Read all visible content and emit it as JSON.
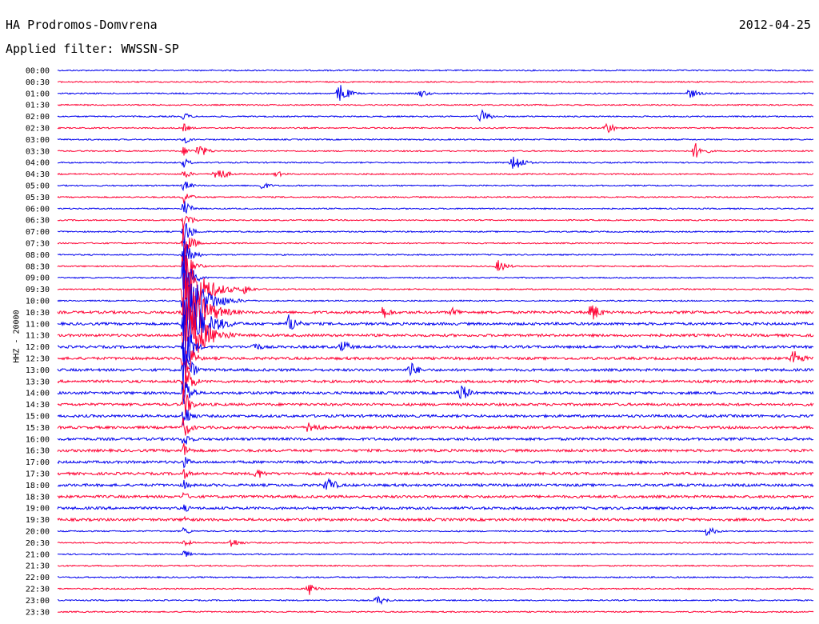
{
  "header": {
    "station": "HA Prodromos-Domvrena",
    "filter": "Applied filter: WWSSN-SP",
    "date": "2012-04-25",
    "channel_label": "HHZ - 20000"
  },
  "colors": {
    "even_trace": "#0000ee",
    "odd_trace": "#ff0033"
  },
  "chart_data": {
    "type": "line",
    "title": "HA Prodromos-Domvrena",
    "subtitle": "Applied filter: WWSSN-SP",
    "date": "2012-04-25",
    "ylabel": "HHZ - 20000",
    "xlabel": "",
    "trace_duration_minutes": 30,
    "row_labels": [
      "00:00",
      "00:30",
      "01:00",
      "01:30",
      "02:00",
      "02:30",
      "03:00",
      "03:30",
      "04:00",
      "04:30",
      "05:00",
      "05:30",
      "06:00",
      "06:30",
      "07:00",
      "07:30",
      "08:00",
      "08:30",
      "09:00",
      "09:30",
      "10:00",
      "10:30",
      "11:00",
      "11:30",
      "12:00",
      "12:30",
      "13:00",
      "13:30",
      "14:00",
      "14:30",
      "15:00",
      "15:30",
      "16:00",
      "16:30",
      "17:00",
      "17:30",
      "18:00",
      "18:30",
      "19:00",
      "19:30",
      "20:00",
      "20:30",
      "21:00",
      "21:30",
      "22:00",
      "22:30",
      "23:00",
      "23:30"
    ],
    "series": [
      {
        "colour": "blue",
        "rows": "even (00:00, 01:00, ...)"
      },
      {
        "colour": "red",
        "rows": "odd (00:30, 01:30, ...)"
      }
    ],
    "events": [
      {
        "row": 2,
        "minute": 11.2,
        "amp": 1.0
      },
      {
        "row": 2,
        "minute": 14.4,
        "amp": 0.4
      },
      {
        "row": 2,
        "minute": 25.1,
        "amp": 0.5
      },
      {
        "row": 4,
        "minute": 16.8,
        "amp": 0.7
      },
      {
        "row": 5,
        "minute": 21.8,
        "amp": 0.6
      },
      {
        "row": 7,
        "minute": 5.6,
        "amp": 0.7
      },
      {
        "row": 7,
        "minute": 25.3,
        "amp": 0.8
      },
      {
        "row": 8,
        "minute": 18.1,
        "amp": 1.0
      },
      {
        "row": 9,
        "minute": 6.3,
        "amp": 0.9
      },
      {
        "row": 9,
        "minute": 8.7,
        "amp": 0.3
      },
      {
        "row": 10,
        "minute": 8.1,
        "amp": 0.4
      },
      {
        "row": 17,
        "minute": 17.5,
        "amp": 0.6
      },
      {
        "row": 19,
        "minute": 7.4,
        "amp": 0.5
      },
      {
        "row": 21,
        "minute": 12.9,
        "amp": 0.7
      },
      {
        "row": 21,
        "minute": 15.7,
        "amp": 0.5
      },
      {
        "row": 21,
        "minute": 21.2,
        "amp": 1.0
      },
      {
        "row": 22,
        "minute": 9.2,
        "amp": 1.0
      },
      {
        "row": 24,
        "minute": 7.8,
        "amp": 0.5
      },
      {
        "row": 24,
        "minute": 11.3,
        "amp": 0.7
      },
      {
        "row": 25,
        "minute": 29.2,
        "amp": 1.0
      },
      {
        "row": 26,
        "minute": 14.0,
        "amp": 0.8
      },
      {
        "row": 28,
        "minute": 16.0,
        "amp": 1.0
      },
      {
        "row": 31,
        "minute": 10.0,
        "amp": 0.8
      },
      {
        "row": 35,
        "minute": 7.9,
        "amp": 0.6
      },
      {
        "row": 36,
        "minute": 10.7,
        "amp": 0.9
      },
      {
        "row": 40,
        "minute": 25.8,
        "amp": 0.5
      },
      {
        "row": 41,
        "minute": 6.9,
        "amp": 0.5
      },
      {
        "row": 45,
        "minute": 10.0,
        "amp": 0.6
      },
      {
        "row": 46,
        "minute": 12.7,
        "amp": 0.5
      }
    ],
    "main_event": {
      "minute": 5.0,
      "start_row": 4,
      "peak_row": 21,
      "end_row": 42
    }
  }
}
